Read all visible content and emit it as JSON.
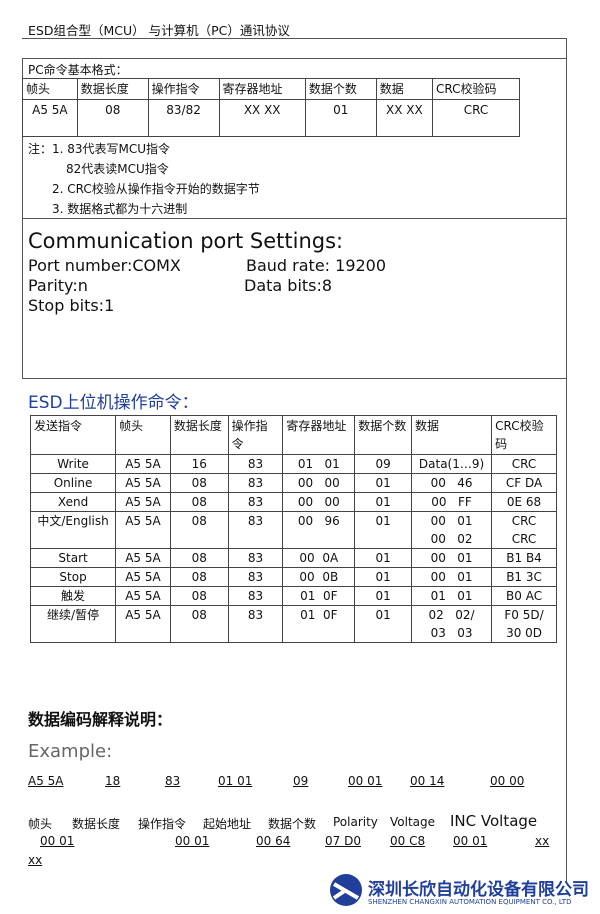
{
  "header": {
    "title": "ESD组合型（MCU） 与计算机（PC）通讯协议"
  },
  "format": {
    "label": "PC命令基本格式：",
    "headers": [
      "帧头",
      "数据长度",
      "操作指令",
      "寄存器地址",
      "数据个数",
      "数据",
      "CRC校验码"
    ],
    "row": [
      "A5 5A",
      "08",
      "83/82",
      "XX XX",
      "01",
      "XX XX",
      "CRC"
    ]
  },
  "notes": [
    "注：1. 83代表写MCU指令",
    "82代表读MCU指令",
    "2. CRC校验从操作指令开始的数据字节",
    "3. 数据格式都为十六进制"
  ],
  "comm": {
    "title": "Communication port Settings:",
    "items": [
      "Port number:COMX",
      "Baud rate:  19200",
      "Parity:n",
      "Data bits:8",
      "Stop bits:1"
    ]
  },
  "commands": {
    "title": "ESD上位机操作命令：",
    "headers": [
      "发送指令",
      "帧头",
      "数据长度",
      "操作指令",
      "寄存器地址",
      "数据个数",
      "数据",
      "CRC校验码"
    ],
    "rows": [
      [
        "Write",
        "A5 5A",
        "16",
        "83",
        "01   01",
        "09",
        "Data(1…9)",
        "CRC"
      ],
      [
        "Online",
        "A5 5A",
        "08",
        "83",
        "00   00",
        "01",
        "00   46",
        "CF DA"
      ],
      [
        "Xend",
        "A5 5A",
        "08",
        "83",
        "00   00",
        "01",
        "00   FF",
        "0E 68"
      ],
      [
        "中文/English",
        "A5 5A",
        "08",
        "83",
        "00   96",
        "01",
        "00   01\n00   02",
        "CRC\nCRC"
      ],
      [
        "Start",
        "A5 5A",
        "08",
        "83",
        "00  0A",
        "01",
        "00   01",
        "B1 B4"
      ],
      [
        "Stop",
        "A5 5A",
        "08",
        "83",
        "00  0B",
        "01",
        "00   01",
        "B1 3C"
      ],
      [
        "触发",
        "A5 5A",
        "08",
        "83",
        "01  0F",
        "01",
        "01   01",
        "B0 AC"
      ],
      [
        "继续/暂停",
        "A5 5A",
        "08",
        "83",
        "01  0F",
        "01",
        "02   02/\n03   03",
        "F0 5D/\n30 0D"
      ]
    ]
  },
  "encoding": {
    "title": "数据编码解释说明："
  },
  "example": {
    "label": "Example:",
    "values": [
      "A5 5A",
      "18",
      "83",
      "01 01",
      "09",
      "00 01",
      "00 14",
      "00 00"
    ],
    "names": [
      "帧头",
      "数据长度",
      "操作指令",
      "起始地址",
      "数据个数",
      "Polarity",
      "Voltage",
      "INC Voltage"
    ],
    "values2": [
      "00 01",
      "00 01",
      "00 64",
      "07 D0",
      "00 C8",
      "00 01",
      "xx",
      "xx"
    ]
  },
  "footer": {
    "company": "深圳长欣自动化设备有限公司",
    "company_en": "SHENZHEN CHANGXIN AUTOMATION EQUIPMENT CO., LTD"
  }
}
